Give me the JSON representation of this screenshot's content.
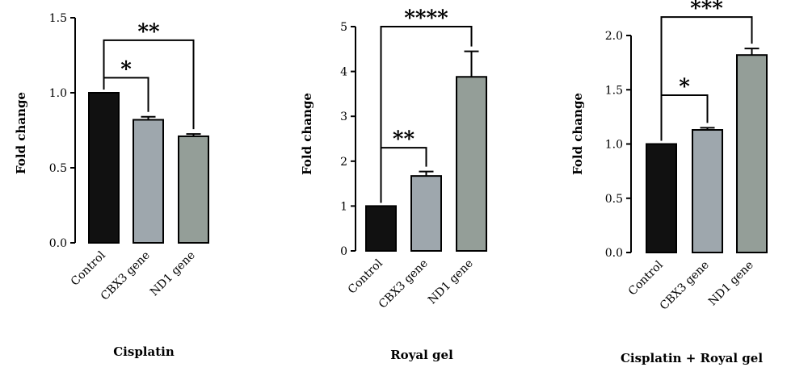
{
  "chart_data": [
    {
      "type": "bar",
      "title": "Cisplatin",
      "xlabel": "",
      "ylabel": "Fold change",
      "categories": [
        "Control",
        "CBX3 gene",
        "ND1 gene"
      ],
      "values": [
        1.0,
        0.82,
        0.71
      ],
      "errors": [
        0.0,
        0.02,
        0.015
      ],
      "colors": [
        "#111111",
        "#9ea7ad",
        "#949e98"
      ],
      "ylim": [
        0,
        1.5
      ],
      "yticks": [
        "0.0",
        "0.5",
        "1.0",
        "1.5"
      ],
      "significance": [
        {
          "from": 0,
          "to": 1,
          "label": "*",
          "y": 1.1
        },
        {
          "from": 0,
          "to": 2,
          "label": "**",
          "y": 1.35
        }
      ],
      "grid": false,
      "legend": "none"
    },
    {
      "type": "bar",
      "title": "Royal gel",
      "xlabel": "",
      "ylabel": "Fold change",
      "categories": [
        "Control",
        "CBX3 gene",
        "ND1 gene"
      ],
      "values": [
        1.0,
        1.67,
        3.88
      ],
      "errors": [
        0.0,
        0.1,
        0.57
      ],
      "colors": [
        "#111111",
        "#9ea7ad",
        "#949e98"
      ],
      "ylim": [
        0,
        5
      ],
      "yticks": [
        "0",
        "1",
        "2",
        "3",
        "4",
        "5"
      ],
      "significance": [
        {
          "from": 0,
          "to": 1,
          "label": "**",
          "y": 2.3
        },
        {
          "from": 0,
          "to": 2,
          "label": "****",
          "y": 5.0
        }
      ],
      "grid": false,
      "legend": "none"
    },
    {
      "type": "bar",
      "title": "Cisplatin + Royal gel",
      "xlabel": "",
      "ylabel": "Fold change",
      "categories": [
        "Control",
        "CBX3 gene",
        "ND1 gene"
      ],
      "values": [
        1.0,
        1.13,
        1.82
      ],
      "errors": [
        0.0,
        0.02,
        0.06
      ],
      "colors": [
        "#111111",
        "#9ea7ad",
        "#949e98"
      ],
      "ylim": [
        0,
        2.0
      ],
      "yticks": [
        "0.0",
        "0.5",
        "1.0",
        "1.5",
        "2.0"
      ],
      "significance": [
        {
          "from": 0,
          "to": 1,
          "label": "*",
          "y": 1.45
        },
        {
          "from": 0,
          "to": 2,
          "label": "***",
          "y": 2.17
        }
      ],
      "grid": false,
      "legend": "none"
    }
  ]
}
